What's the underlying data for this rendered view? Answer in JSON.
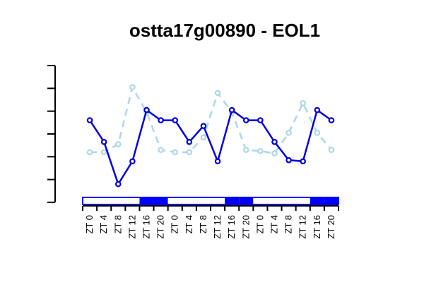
{
  "chart_data": {
    "type": "line",
    "title": "ostta17g00890 - EOL1",
    "categories": [
      "ZT 0",
      "ZT 4",
      "ZT 8",
      "ZT 12",
      "ZT 16",
      "ZT 20",
      "ZT 0",
      "ZT 4",
      "ZT 8",
      "ZT 12",
      "ZT 16",
      "ZT 20",
      "ZT 0",
      "ZT 4",
      "ZT 8",
      "ZT 12",
      "ZT 16",
      "ZT 20"
    ],
    "ylim": [
      0,
      6
    ],
    "y_ticks": [
      0,
      1,
      2,
      3,
      4,
      5,
      6
    ],
    "y_tick_labels_shown": false,
    "grid": false,
    "series": [
      {
        "style": "solid",
        "color": "#0000e0",
        "values": [
          3.6,
          2.65,
          0.8,
          1.8,
          4.05,
          3.6,
          3.6,
          2.65,
          3.35,
          1.8,
          4.05,
          3.6,
          3.6,
          2.65,
          1.85,
          1.8,
          4.05,
          3.6
        ]
      },
      {
        "style": "dashed",
        "color": "#add8e6",
        "values": [
          2.2,
          2.2,
          2.55,
          5.05,
          3.95,
          2.3,
          2.2,
          2.2,
          2.85,
          4.8,
          3.95,
          2.3,
          2.25,
          2.15,
          3.05,
          4.35,
          3.05,
          2.3
        ]
      }
    ],
    "light_dark_bar": [
      "light",
      "light",
      "light",
      "light",
      "dark",
      "dark",
      "light",
      "light",
      "light",
      "light",
      "dark",
      "dark",
      "light",
      "light",
      "light",
      "light",
      "dark",
      "dark"
    ],
    "bar_colors": {
      "light": "#ffffff",
      "dark": "#0000ff",
      "outline": "#0000ff"
    }
  }
}
